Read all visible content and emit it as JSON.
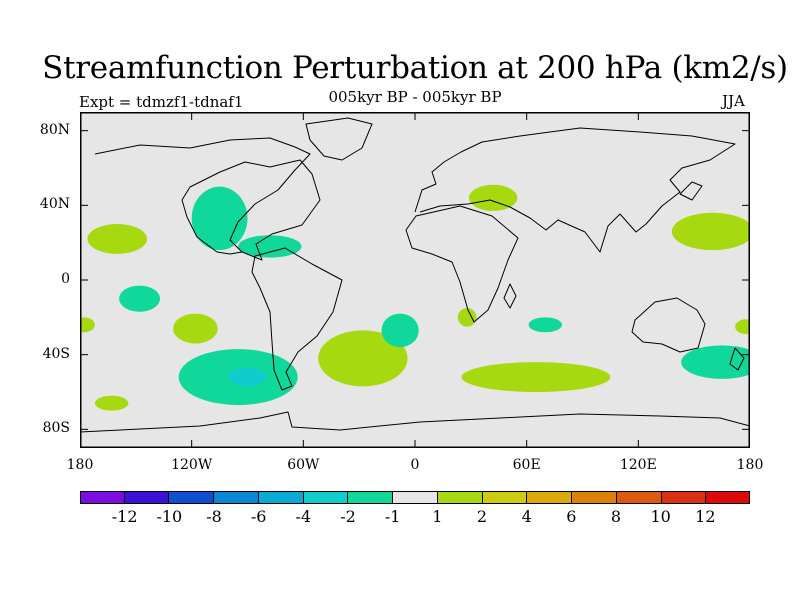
{
  "title": "Streamfunction Perturbation at 200 hPa (km2/s)",
  "subtitle": "005kyr BP - 005kyr BP",
  "experiment": "Expt = tdmzf1-tdnaf1",
  "season": "JJA",
  "map": {
    "projection": "cylindrical equidistant",
    "lat_range": [
      -90,
      90
    ],
    "lon_range": [
      -180,
      180
    ],
    "lat_ticks": [
      {
        "label": "80N",
        "value": 80
      },
      {
        "label": "40N",
        "value": 40
      },
      {
        "label": "0",
        "value": 0
      },
      {
        "label": "40S",
        "value": -40
      },
      {
        "label": "80S",
        "value": -80
      }
    ],
    "lon_ticks": [
      {
        "label": "180",
        "value": -180
      },
      {
        "label": "120W",
        "value": -120
      },
      {
        "label": "60W",
        "value": -60
      },
      {
        "label": "0",
        "value": 0
      },
      {
        "label": "60E",
        "value": 60
      },
      {
        "label": "120E",
        "value": 120
      },
      {
        "label": "180",
        "value": 180
      }
    ],
    "background_color": "#e6e6e6",
    "coastline_color": "#000000"
  },
  "colorbar": {
    "colors": [
      "#7a0ee0",
      "#3a12d8",
      "#1050d0",
      "#0a86d6",
      "#0aaad6",
      "#10cccc",
      "#10d89a",
      "#e6e6e6",
      "#a6d910",
      "#cccc10",
      "#dcaa0a",
      "#dc820a",
      "#dc5a10",
      "#dc3214",
      "#dc0a0a"
    ],
    "labels": [
      "-12",
      "-10",
      "-8",
      "-6",
      "-4",
      "-2",
      "-1",
      "1",
      "2",
      "4",
      "6",
      "8",
      "10",
      "12"
    ],
    "label_values": [
      -12,
      -10,
      -8,
      -6,
      -4,
      -2,
      -1,
      1,
      2,
      4,
      6,
      8,
      10,
      12
    ]
  },
  "regions": [
    {
      "name": "north-america-negative",
      "category": "-2 to -1",
      "color": "#10d89a",
      "center_lon": -105,
      "center_lat": 33,
      "radius_lon": 15,
      "radius_lat": 17
    },
    {
      "name": "caribbean-negative",
      "category": "-2 to -1",
      "color": "#10d89a",
      "center_lon": -78,
      "center_lat": 18,
      "radius_lon": 17,
      "radius_lat": 6
    },
    {
      "name": "west-pacific-tropics-positive",
      "category": "1 to 2",
      "color": "#a6d910",
      "center_lon": -160,
      "center_lat": 22,
      "radius_lon": 16,
      "radius_lat": 8
    },
    {
      "name": "east-pacific-south-negative",
      "category": "-2 to -1",
      "color": "#10d89a",
      "center_lon": -148,
      "center_lat": -10,
      "radius_lon": 11,
      "radius_lat": 7
    },
    {
      "name": "south-pacific-positive",
      "category": "1 to 2",
      "color": "#a6d910",
      "center_lon": -118,
      "center_lat": -26,
      "radius_lon": 12,
      "radius_lat": 8
    },
    {
      "name": "south-pacific-southern-negative",
      "category": "-2 to -1",
      "color": "#10d89a",
      "center_lon": -95,
      "center_lat": -52,
      "radius_lon": 32,
      "radius_lat": 15
    },
    {
      "name": "south-pacific-core-negative",
      "category": "-4 to -2",
      "color": "#10cccc",
      "center_lon": -90,
      "center_lat": -52,
      "radius_lon": 10,
      "radius_lat": 5
    },
    {
      "name": "south-pacific-far-positive",
      "category": "1 to 2",
      "color": "#a6d910",
      "center_lon": -163,
      "center_lat": -66,
      "radius_lon": 9,
      "radius_lat": 4
    },
    {
      "name": "south-atlantic-positive",
      "category": "1 to 2",
      "color": "#a6d910",
      "center_lon": -28,
      "center_lat": -42,
      "radius_lon": 24,
      "radius_lat": 15
    },
    {
      "name": "south-atlantic-negative",
      "category": "-2 to -1",
      "color": "#10d89a",
      "center_lon": -8,
      "center_lat": -27,
      "radius_lon": 10,
      "radius_lat": 9
    },
    {
      "name": "central-asia-positive",
      "category": "1 to 2",
      "color": "#a6d910",
      "center_lon": 42,
      "center_lat": 44,
      "radius_lon": 13,
      "radius_lat": 7
    },
    {
      "name": "southern-africa-positive",
      "category": "1 to 2",
      "color": "#a6d910",
      "center_lon": 28,
      "center_lat": -20,
      "radius_lon": 5,
      "radius_lat": 5
    },
    {
      "name": "indian-ocean-negative",
      "category": "-2 to -1",
      "color": "#10d89a",
      "center_lon": 70,
      "center_lat": -24,
      "radius_lon": 9,
      "radius_lat": 4
    },
    {
      "name": "south-indian-ocean-positive",
      "category": "1 to 2",
      "color": "#a6d910",
      "center_lon": 65,
      "center_lat": -52,
      "radius_lon": 40,
      "radius_lat": 8
    },
    {
      "name": "west-pacific-positive",
      "category": "1 to 2",
      "color": "#a6d910",
      "center_lon": 160,
      "center_lat": 26,
      "radius_lon": 22,
      "radius_lat": 10
    },
    {
      "name": "tasman-negative",
      "category": "-2 to -1",
      "color": "#10d89a",
      "center_lon": 165,
      "center_lat": -44,
      "radius_lon": 22,
      "radius_lat": 9
    },
    {
      "name": "southwest-pacific-positive",
      "category": "1 to 2",
      "color": "#a6d910",
      "center_lon": 178,
      "center_lat": -25,
      "radius_lon": 6,
      "radius_lat": 4
    },
    {
      "name": "dateline-southwest-positive",
      "category": "1 to 2",
      "color": "#a6d910",
      "center_lon": -178,
      "center_lat": -24,
      "radius_lon": 6,
      "radius_lat": 4
    }
  ]
}
